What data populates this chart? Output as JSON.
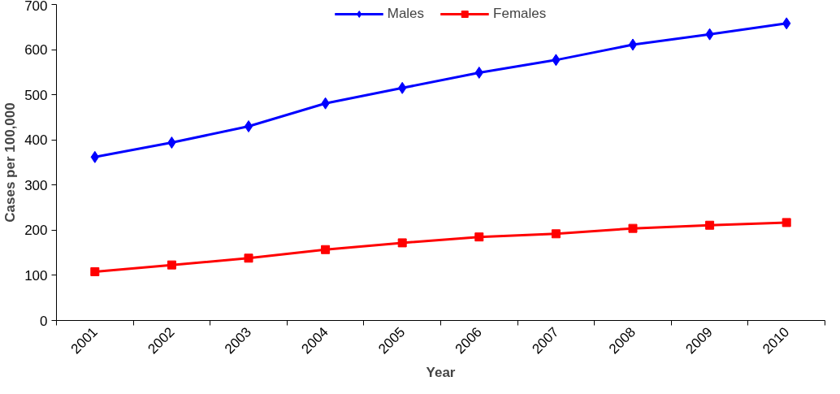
{
  "chart_data": {
    "type": "line",
    "xlabel": "Year",
    "ylabel": "Cases per 100,000",
    "categories": [
      "2001",
      "2002",
      "2003",
      "2004",
      "2005",
      "2006",
      "2007",
      "2008",
      "2009",
      "2010"
    ],
    "series": [
      {
        "name": "Males",
        "color": "#0000ff",
        "marker": "diamond",
        "values": [
          362,
          394,
          430,
          481,
          515,
          549,
          577,
          611,
          634,
          658
        ]
      },
      {
        "name": "Females",
        "color": "#ff0000",
        "marker": "square",
        "values": [
          108,
          123,
          138,
          157,
          172,
          185,
          192,
          204,
          211,
          217
        ]
      }
    ],
    "ylim": [
      0,
      700
    ],
    "yticks": [
      0,
      100,
      200,
      300,
      400,
      500,
      600,
      700
    ],
    "grid": false,
    "legend": "top",
    "line_style": "solid"
  }
}
